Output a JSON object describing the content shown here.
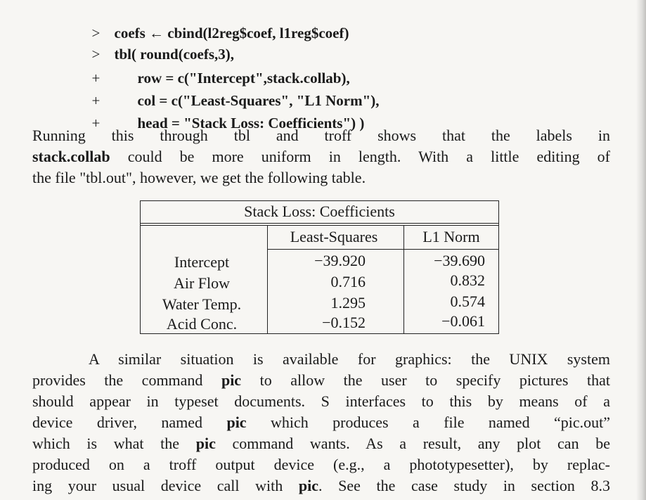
{
  "code": {
    "lines": [
      {
        "prompt": ">",
        "text": "coefs ← cbind(l2reg$coef, l1reg$coef)"
      },
      {
        "prompt": ">",
        "text": "tbl( round(coefs,3),"
      },
      {
        "prompt": "+",
        "text": "row = c(\"Intercept\",stack.collab),"
      },
      {
        "prompt": "+",
        "text": "col = c(\"Least-Squares\", \"L1 Norm\"),"
      },
      {
        "prompt": "+",
        "text": "head = \"Stack Loss: Coefficients\") )"
      }
    ]
  },
  "para1": {
    "l1": "Running this through tbl and troff shows that the labels in",
    "l2_bold": "stack.collab",
    "l2_rest": " could be more uniform in length. With a little editing of",
    "l3": "the file \"tbl.out\", however, we get the following table."
  },
  "table": {
    "caption": "Stack Loss: Coefficients",
    "columns": [
      "Least-Squares",
      "L1 Norm"
    ],
    "rows": [
      {
        "label": "Intercept",
        "ls": "−39.920",
        "l1": "−39.690"
      },
      {
        "label": "Air Flow",
        "ls": "0.716",
        "l1": "0.832"
      },
      {
        "label": "Water Temp.",
        "ls": "1.295",
        "l1": "0.574"
      },
      {
        "label": "Acid Conc.",
        "ls": "−0.152",
        "l1": "−0.061"
      }
    ]
  },
  "para2": {
    "l1": "A similar situation is available for graphics: the UNIX system",
    "l2a": "provides the command ",
    "l2b": "pic",
    "l2c": " to allow the user to specify pictures that",
    "l3": "should appear in typeset documents. S interfaces to this by means of a",
    "l4a": "device driver, named ",
    "l4b": "pic",
    "l4c": " which produces a file named “pic.out”",
    "l5a": "which is what the ",
    "l5b": "pic",
    "l5c": " command wants. As a result, any plot can be",
    "l6": "produced on a troff output device (e.g., a phototypesetter), by replac-",
    "l7a": "ing your usual device call with ",
    "l7b": "pic",
    "l7c": ". See the case study in section 8.3"
  }
}
